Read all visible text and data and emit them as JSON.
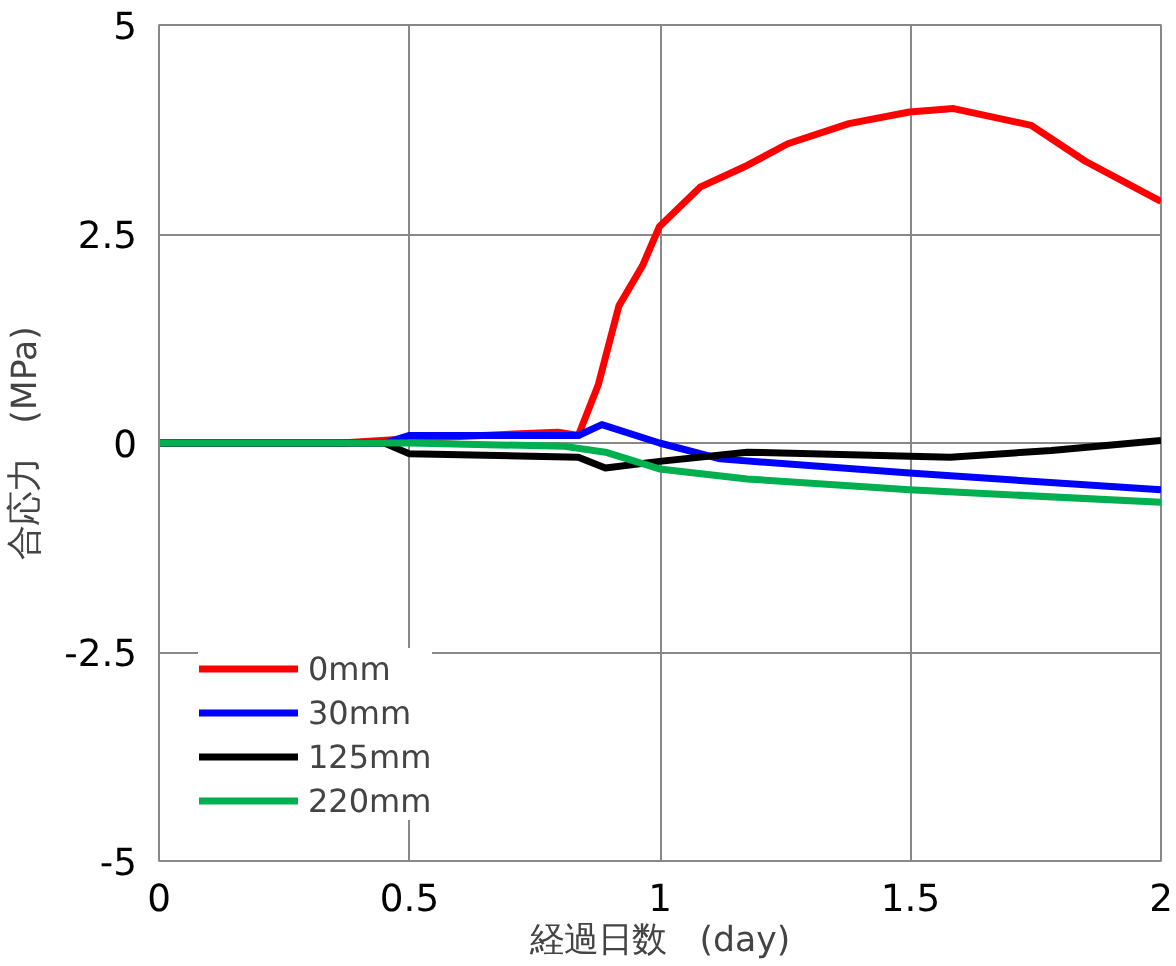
{
  "chart_data": {
    "type": "line",
    "xlabel": "経過日数　(day)",
    "ylabel": "合応力　(MPa)",
    "xlim": [
      0,
      2
    ],
    "ylim": [
      -5,
      5
    ],
    "xticks": [
      0,
      0.5,
      1,
      1.5,
      2
    ],
    "yticks": [
      5,
      2.5,
      0,
      -2.5,
      -5
    ],
    "grid": true,
    "legend": "bottom left",
    "marker": "none",
    "line_style": "solid",
    "series": [
      {
        "name": "0mm",
        "color": "#ff0000",
        "x": [
          0,
          0.364,
          0.5,
          0.796,
          0.837,
          0.877,
          0.918,
          0.965,
          0.999,
          1.08,
          1.174,
          1.255,
          1.377,
          1.498,
          1.586,
          1.741,
          1.849,
          2.0
        ],
        "values": [
          0,
          0,
          0.05,
          0.13,
          0.09,
          0.7,
          1.64,
          2.12,
          2.59,
          3.06,
          3.32,
          3.58,
          3.82,
          3.96,
          4.0,
          3.8,
          3.37,
          2.89
        ]
      },
      {
        "name": "30mm",
        "color": "#0000ff",
        "x": [
          0,
          0.45,
          0.5,
          0.837,
          0.884,
          0.999,
          1.12,
          1.498,
          2.0
        ],
        "values": [
          0,
          0,
          0.09,
          0.09,
          0.22,
          0,
          -0.19,
          -0.36,
          -0.56
        ]
      },
      {
        "name": "125mm",
        "color": "#000000",
        "x": [
          0,
          0.45,
          0.5,
          0.837,
          0.891,
          0.999,
          1.174,
          1.579,
          1.781,
          2.0
        ],
        "values": [
          0,
          0,
          -0.13,
          -0.17,
          -0.3,
          -0.22,
          -0.11,
          -0.17,
          -0.09,
          0.03
        ]
      },
      {
        "name": "220mm",
        "color": "#00b050",
        "x": [
          0,
          0.5,
          0.81,
          0.891,
          0.999,
          1.174,
          1.498,
          2.0
        ],
        "values": [
          0,
          0,
          -0.04,
          -0.11,
          -0.31,
          -0.43,
          -0.56,
          -0.71
        ]
      }
    ]
  }
}
